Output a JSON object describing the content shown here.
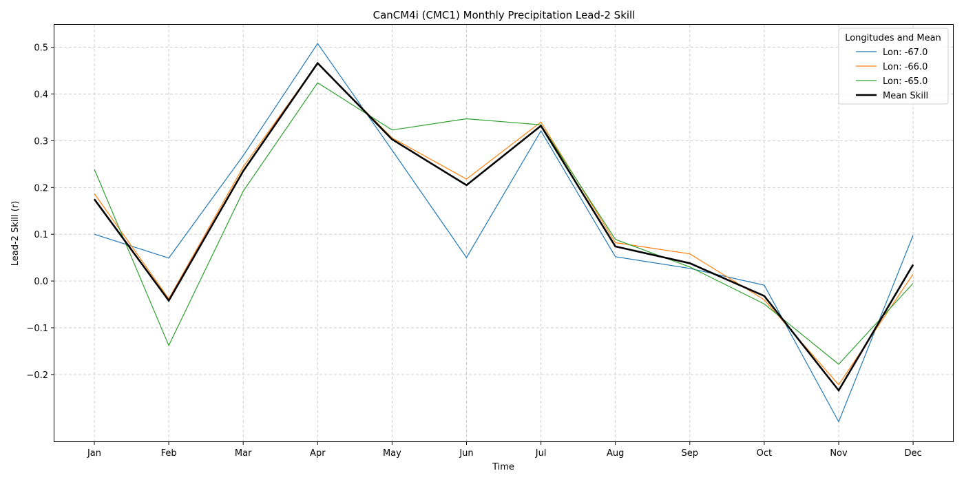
{
  "chart_data": {
    "type": "line",
    "title": "CanCM4i (CMC1) Monthly Precipitation Lead-2 Skill",
    "xlabel": "Time",
    "ylabel": "Lead-2 Skill (r)",
    "categories": [
      "Jan",
      "Feb",
      "Mar",
      "Apr",
      "May",
      "Jun",
      "Jul",
      "Aug",
      "Sep",
      "Oct",
      "Nov",
      "Dec"
    ],
    "ylim": [
      -0.343,
      0.548
    ],
    "yticks": [
      0.5,
      0.4,
      0.3,
      0.2,
      0.1,
      0.0,
      -0.1,
      -0.2
    ],
    "ytick_labels": [
      "0.5",
      "0.4",
      "0.3",
      "0.2",
      "0.1",
      "0.0",
      "−0.1",
      "−0.2"
    ],
    "grid": true,
    "legend": {
      "title": "Longitudes and Mean",
      "placement": "top-right"
    },
    "series": [
      {
        "name": "Lon: -67.0",
        "color": "#1f77b4",
        "width": "thin",
        "values": [
          0.1,
          0.049,
          0.268,
          0.508,
          0.28,
          0.05,
          0.321,
          0.052,
          0.027,
          -0.009,
          -0.301,
          0.098
        ]
      },
      {
        "name": "Lon: -66.0",
        "color": "#ff7f0e",
        "width": "thin",
        "values": [
          0.187,
          -0.038,
          0.244,
          0.466,
          0.306,
          0.218,
          0.34,
          0.082,
          0.058,
          -0.04,
          -0.222,
          0.015
        ]
      },
      {
        "name": "Lon: -65.0",
        "color": "#2ca02c",
        "width": "thin",
        "values": [
          0.239,
          -0.138,
          0.192,
          0.424,
          0.323,
          0.347,
          0.334,
          0.089,
          0.03,
          -0.049,
          -0.178,
          -0.005
        ]
      },
      {
        "name": "Mean Skill",
        "color": "#000000",
        "width": "thick",
        "values": [
          0.175,
          -0.042,
          0.235,
          0.466,
          0.303,
          0.205,
          0.332,
          0.074,
          0.038,
          -0.032,
          -0.234,
          0.035
        ]
      }
    ]
  }
}
